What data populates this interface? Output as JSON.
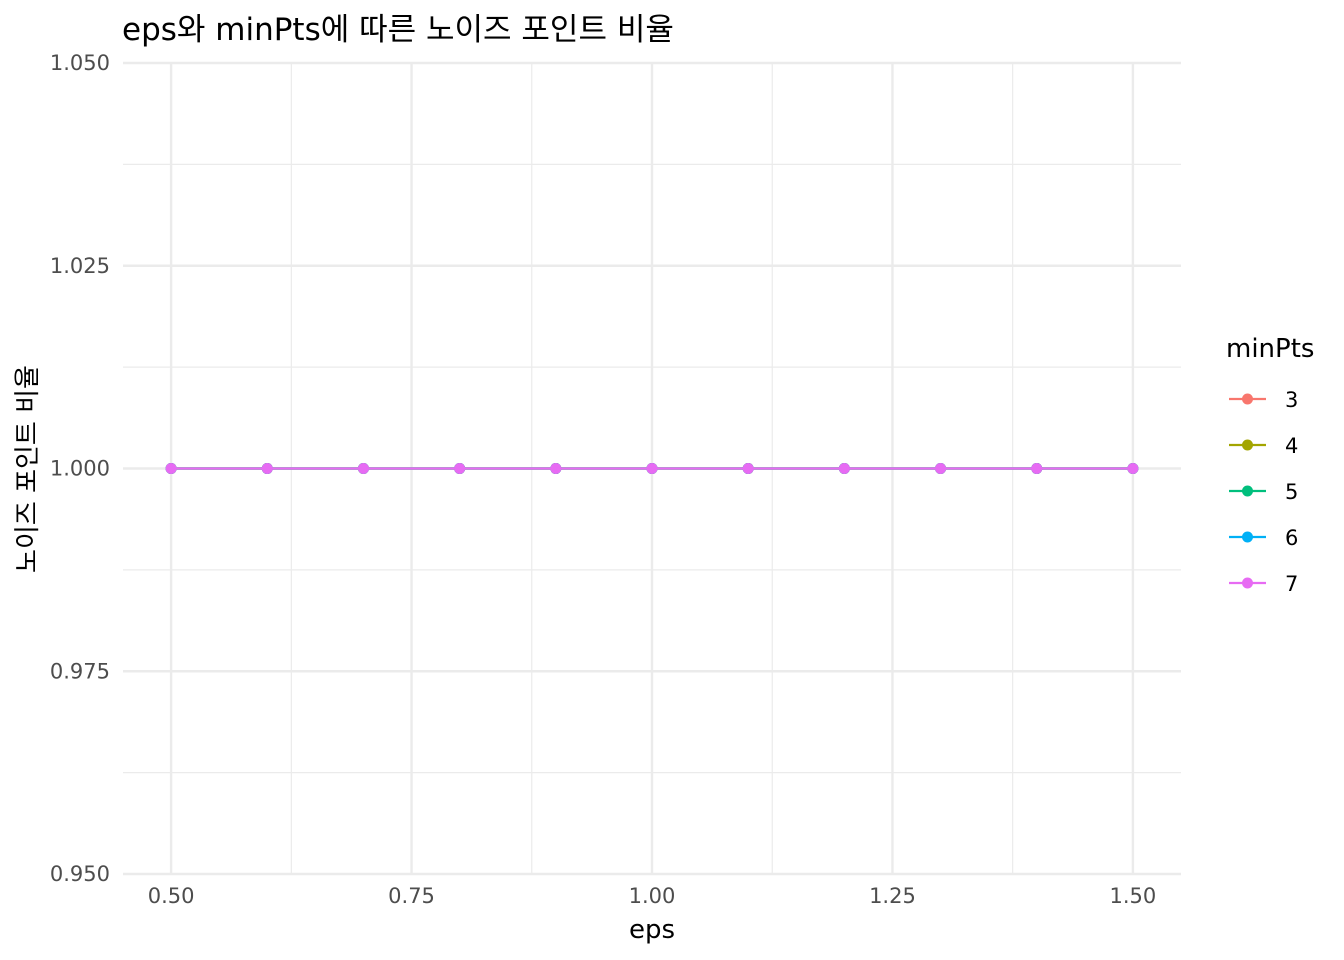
{
  "chart_data": {
    "type": "line",
    "title": "eps와 minPts에 따른 노이즈 포인트 비율",
    "xlabel": "eps",
    "ylabel": "노이즈 포인트 비율",
    "x": [
      0.5,
      0.6,
      0.7,
      0.8,
      0.9,
      1.0,
      1.1,
      1.2,
      1.3,
      1.4,
      1.5
    ],
    "xlim": [
      0.45,
      1.55
    ],
    "ylim": [
      0.95,
      1.05
    ],
    "x_ticks": [
      "0.50",
      "0.75",
      "1.00",
      "1.25",
      "1.50"
    ],
    "x_tick_values": [
      0.5,
      0.75,
      1.0,
      1.25,
      1.5
    ],
    "y_ticks": [
      "0.950",
      "0.975",
      "1.000",
      "1.025",
      "1.050"
    ],
    "y_tick_values": [
      0.95,
      0.975,
      1.0,
      1.025,
      1.05
    ],
    "grid": true,
    "legend": {
      "title": "minPts",
      "placement": "right"
    },
    "series": [
      {
        "name": "3",
        "color": "#F8766D",
        "values": [
          1,
          1,
          1,
          1,
          1,
          1,
          1,
          1,
          1,
          1,
          1
        ]
      },
      {
        "name": "4",
        "color": "#A3A500",
        "values": [
          1,
          1,
          1,
          1,
          1,
          1,
          1,
          1,
          1,
          1,
          1
        ]
      },
      {
        "name": "5",
        "color": "#00BF7D",
        "values": [
          1,
          1,
          1,
          1,
          1,
          1,
          1,
          1,
          1,
          1,
          1
        ]
      },
      {
        "name": "6",
        "color": "#00B0F6",
        "values": [
          1,
          1,
          1,
          1,
          1,
          1,
          1,
          1,
          1,
          1,
          1
        ]
      },
      {
        "name": "7",
        "color": "#E76BF3",
        "values": [
          1,
          1,
          1,
          1,
          1,
          1,
          1,
          1,
          1,
          1,
          1
        ]
      }
    ]
  }
}
